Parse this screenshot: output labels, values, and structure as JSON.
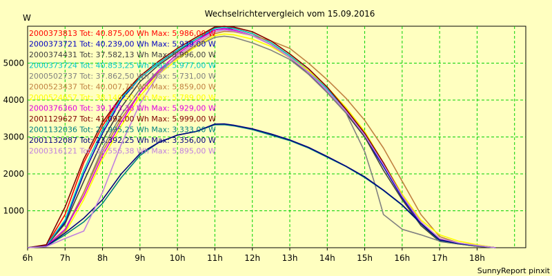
{
  "chart_data": {
    "type": "line",
    "title": "Wechselrichtervergleich vom 15.09.2016",
    "ylabel": "W",
    "xlabel": "",
    "footer": "SunnyReport pinxit",
    "x_ticks": [
      "6h",
      "7h",
      "8h",
      "9h",
      "10h",
      "11h",
      "12h",
      "13h",
      "14h",
      "15h",
      "16h",
      "17h",
      "18h"
    ],
    "y_ticks": [
      "1000",
      "2000",
      "3000",
      "4000",
      "5000"
    ],
    "xlim": [
      6,
      19.3
    ],
    "ylim": [
      0,
      6000
    ],
    "grid": true,
    "grid_color": "#00d000",
    "plot_background": "#ffffc0",
    "legend_position": "top-left",
    "series": [
      {
        "name": "2000373813 Tot: 40.875,00 Wh Max: 5.986,00 W",
        "color": "#ff0000",
        "x": [
          6,
          6.5,
          7,
          7.5,
          8,
          8.5,
          9,
          9.5,
          10,
          10.5,
          11,
          11.25,
          11.5,
          12,
          12.5,
          13,
          13.5,
          14,
          14.5,
          15,
          15.5,
          16,
          16.5,
          17,
          17.5,
          18,
          18.5
        ],
        "y": [
          0,
          60,
          900,
          2300,
          3300,
          4100,
          4600,
          5000,
          5350,
          5650,
          5950,
          5986,
          5950,
          5800,
          5550,
          5200,
          4800,
          4300,
          3750,
          3100,
          2300,
          1400,
          700,
          200,
          120,
          60,
          0
        ]
      },
      {
        "name": "2000373721 Tot: 40.239,00 Wh Max: 5.939,00 W",
        "color": "#0000c0",
        "x": [
          6,
          6.5,
          7,
          7.5,
          8,
          8.5,
          9,
          9.5,
          10,
          10.5,
          11,
          11.25,
          11.5,
          12,
          12.5,
          13,
          13.5,
          14,
          14.5,
          15,
          15.5,
          16,
          16.5,
          17,
          17.5,
          18,
          18.5
        ],
        "y": [
          0,
          60,
          700,
          2000,
          3100,
          4000,
          4600,
          5000,
          5350,
          5650,
          5900,
          5939,
          5900,
          5750,
          5500,
          5150,
          4750,
          4200,
          3650,
          3000,
          2200,
          1350,
          650,
          180,
          110,
          50,
          0
        ]
      },
      {
        "name": "2000374431 Tot: 37.582,13 Wh Max: 5.996,00 W",
        "color": "#404040",
        "x": [
          6,
          6.5,
          7,
          7.5,
          8,
          8.5,
          9,
          9.5,
          10,
          10.5,
          11,
          11.25,
          11.5,
          12,
          12.5,
          13,
          13.5,
          14,
          14.5,
          15,
          15.5,
          16,
          16.5,
          17,
          17.5,
          18,
          18.5
        ],
        "y": [
          0,
          50,
          650,
          1800,
          2900,
          3800,
          4500,
          4950,
          5300,
          5650,
          5950,
          5996,
          5900,
          5750,
          5500,
          5150,
          4700,
          4200,
          3650,
          3000,
          2100,
          1300,
          600,
          170,
          100,
          40,
          0
        ]
      },
      {
        "name": "2000373724 Tot: 40.853,25 Wh Max: 5.977,00 W",
        "color": "#00c8c8",
        "x": [
          6,
          6.5,
          7,
          7.5,
          8,
          8.5,
          9,
          9.5,
          10,
          10.5,
          11,
          11.25,
          11.5,
          12,
          12.5,
          13,
          13.5,
          14,
          14.5,
          15,
          15.5,
          16,
          16.5,
          17,
          17.5,
          18,
          18.5
        ],
        "y": [
          0,
          60,
          750,
          2100,
          3200,
          4050,
          4600,
          5000,
          5350,
          5650,
          5940,
          5977,
          5940,
          5800,
          5550,
          5200,
          4800,
          4300,
          3700,
          3050,
          2250,
          1400,
          680,
          190,
          110,
          50,
          0
        ]
      },
      {
        "name": "2000502737 Tot: 37.862,50 Wh Max: 5.731,00 W",
        "color": "#808080",
        "x": [
          6,
          6.5,
          7,
          7.5,
          8,
          8.5,
          9,
          9.5,
          10,
          10.5,
          11,
          11.25,
          11.5,
          12,
          12.5,
          13,
          13.5,
          14,
          14.5,
          15,
          15.25,
          15.5,
          16,
          16.5,
          17,
          17.5,
          18,
          18.5
        ],
        "y": [
          0,
          40,
          500,
          1500,
          2700,
          3600,
          4300,
          4800,
          5150,
          5450,
          5700,
          5731,
          5700,
          5550,
          5350,
          5100,
          4700,
          4200,
          3650,
          2600,
          1800,
          900,
          500,
          350,
          180,
          100,
          40,
          0
        ]
      },
      {
        "name": "2000523437 Tot: 40.007,75 Wh Max: 5.859,00 W",
        "color": "#c08040",
        "x": [
          6,
          6.5,
          7,
          7.5,
          8,
          8.5,
          9,
          9.5,
          10,
          10.5,
          11,
          11.25,
          11.5,
          12,
          12.5,
          13,
          13.5,
          14,
          14.5,
          15,
          15.5,
          16,
          16.5,
          17,
          17.5,
          18,
          18.5
        ],
        "y": [
          0,
          40,
          450,
          1500,
          2600,
          3500,
          4200,
          4750,
          5150,
          5500,
          5800,
          5859,
          5850,
          5750,
          5600,
          5400,
          5000,
          4550,
          4050,
          3450,
          2700,
          1800,
          900,
          300,
          130,
          60,
          0
        ]
      },
      {
        "name": "2000524657 Tot: 38.140,50 Wh Max: 5.789,00 W",
        "color": "#ffff00",
        "x": [
          6,
          6.5,
          7,
          7.5,
          8,
          8.5,
          9,
          9.5,
          10,
          10.5,
          11,
          11.25,
          11.5,
          12,
          12.5,
          13,
          13.5,
          14,
          14.5,
          15,
          15.5,
          16,
          16.5,
          17,
          17.5,
          18,
          18.5
        ],
        "y": [
          0,
          40,
          400,
          1300,
          2400,
          3300,
          4100,
          4700,
          5100,
          5450,
          5750,
          5789,
          5770,
          5650,
          5450,
          5150,
          4800,
          4350,
          3800,
          3150,
          2300,
          1450,
          750,
          350,
          180,
          80,
          0
        ]
      },
      {
        "name": "2000376360 Tot: 39.153,38 Wh Max: 5.929,00 W",
        "color": "#e000e0",
        "x": [
          6,
          6.5,
          7,
          7.5,
          8,
          8.5,
          9,
          9.5,
          10,
          10.5,
          11,
          11.25,
          11.5,
          12,
          12.5,
          13,
          13.5,
          14,
          14.5,
          15,
          15.5,
          16,
          16.5,
          17,
          17.5,
          18,
          18.5
        ],
        "y": [
          0,
          50,
          500,
          1400,
          2500,
          3400,
          4200,
          4800,
          5250,
          5600,
          5900,
          5929,
          5900,
          5750,
          5500,
          5150,
          4750,
          4250,
          3700,
          3050,
          2250,
          1400,
          680,
          220,
          120,
          50,
          0
        ]
      },
      {
        "name": "2001129627 Tot: 41.092,00 Wh Max: 5.999,00 W",
        "color": "#800000",
        "x": [
          6,
          6.5,
          7,
          7.5,
          8,
          8.5,
          9,
          9.5,
          10,
          10.5,
          11,
          11.25,
          11.5,
          12,
          12.5,
          13,
          13.5,
          14,
          14.5,
          15,
          15.5,
          16,
          16.5,
          17,
          17.5,
          18,
          18.5
        ],
        "y": [
          0,
          80,
          1100,
          2400,
          3400,
          4100,
          4650,
          5050,
          5400,
          5700,
          5980,
          5999,
          5980,
          5850,
          5600,
          5250,
          4850,
          4350,
          3750,
          3100,
          2300,
          1400,
          700,
          210,
          120,
          50,
          0
        ]
      },
      {
        "name": "2001132036 Tot: 22.995,25 Wh Max: 3.333,00 W",
        "color": "#008080",
        "x": [
          6,
          6.5,
          7,
          7.5,
          8,
          8.5,
          9,
          9.5,
          10,
          10.5,
          11,
          11.25,
          11.5,
          12,
          12.5,
          13,
          13.5,
          14,
          14.5,
          15,
          15.5,
          16,
          16.5,
          17,
          17.5,
          18,
          18.5
        ],
        "y": [
          0,
          40,
          350,
          700,
          1200,
          1900,
          2500,
          2850,
          3050,
          3150,
          3330,
          3333,
          3300,
          3200,
          3050,
          2900,
          2700,
          2450,
          2200,
          1900,
          1550,
          1150,
          650,
          200,
          110,
          50,
          0
        ]
      },
      {
        "name": "2001132087 Tot: 23.392,25 Wh Max: 3.356,00 W",
        "color": "#000080",
        "x": [
          6,
          6.5,
          7,
          7.5,
          8,
          8.5,
          9,
          9.5,
          10,
          10.5,
          11,
          11.25,
          11.5,
          12,
          12.5,
          13,
          13.5,
          14,
          14.5,
          15,
          15.5,
          16,
          16.5,
          17,
          17.5,
          18,
          18.5
        ],
        "y": [
          0,
          40,
          400,
          800,
          1300,
          2000,
          2550,
          2850,
          3050,
          3150,
          3350,
          3356,
          3320,
          3220,
          3080,
          2920,
          2720,
          2470,
          2210,
          1920,
          1560,
          1160,
          660,
          210,
          115,
          55,
          0
        ]
      },
      {
        "name": "2000316121 Tot: 38.556,38 Wh Max: 5.895,00 W",
        "color": "#c080e0",
        "x": [
          6,
          6.5,
          7,
          7.5,
          8,
          8.5,
          9,
          9.5,
          10,
          10.5,
          11,
          11.25,
          11.5,
          12,
          12.5,
          13,
          13.5,
          14,
          14.5,
          15,
          15.5,
          16,
          16.5,
          17,
          17.5,
          18,
          18.5
        ],
        "y": [
          0,
          30,
          250,
          450,
          1500,
          2800,
          3900,
          4700,
          5200,
          5550,
          5850,
          5895,
          5870,
          5750,
          5500,
          5150,
          4750,
          4250,
          3700,
          3050,
          2250,
          1400,
          700,
          250,
          130,
          60,
          0
        ]
      }
    ]
  }
}
